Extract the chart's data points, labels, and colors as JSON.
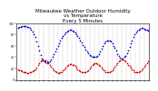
{
  "title": "Milwaukee Weather Outdoor Humidity\nvs Temperature\nEvery 5 Minutes",
  "title_fontsize": 4.0,
  "bg_color": "#ffffff",
  "grid_color": "#b0b0b0",
  "blue_color": "#0000cc",
  "red_color": "#cc0000",
  "ylim": [
    0,
    100
  ],
  "xlim": [
    0,
    300
  ],
  "blue_x": [
    3,
    6,
    9,
    12,
    15,
    18,
    21,
    24,
    27,
    30,
    33,
    36,
    39,
    42,
    45,
    48,
    51,
    54,
    57,
    60,
    63,
    66,
    69,
    72,
    75,
    78,
    81,
    84,
    87,
    90,
    93,
    96,
    99,
    102,
    105,
    108,
    111,
    114,
    117,
    120,
    123,
    126,
    129,
    132,
    135,
    138,
    141,
    144,
    147,
    150,
    153,
    156,
    159,
    162,
    165,
    168,
    171,
    174,
    177,
    180,
    183,
    186,
    189,
    192,
    195,
    198,
    201,
    204,
    207,
    210,
    213,
    216,
    219,
    222,
    225,
    228,
    231,
    234,
    237,
    240,
    243,
    246,
    249,
    252,
    255,
    258,
    261,
    264,
    267,
    270,
    273,
    276,
    279,
    282,
    285,
    288,
    291,
    294,
    297
  ],
  "blue_y": [
    92,
    93,
    94,
    95,
    95,
    95,
    95,
    94,
    93,
    91,
    88,
    85,
    80,
    75,
    68,
    60,
    52,
    44,
    38,
    34,
    32,
    31,
    30,
    31,
    33,
    36,
    40,
    45,
    50,
    55,
    60,
    65,
    70,
    74,
    78,
    81,
    84,
    86,
    87,
    88,
    88,
    87,
    86,
    84,
    81,
    78,
    74,
    70,
    66,
    62,
    58,
    54,
    50,
    47,
    44,
    42,
    40,
    40,
    40,
    41,
    43,
    46,
    50,
    55,
    60,
    65,
    68,
    70,
    70,
    69,
    67,
    64,
    60,
    56,
    51,
    46,
    42,
    39,
    38,
    38,
    40,
    43,
    47,
    52,
    58,
    64,
    70,
    75,
    80,
    84,
    87,
    89,
    90,
    91,
    91,
    90,
    89,
    88,
    87
  ],
  "red_x": [
    3,
    6,
    9,
    12,
    15,
    18,
    21,
    24,
    27,
    30,
    33,
    36,
    39,
    42,
    45,
    48,
    51,
    54,
    57,
    60,
    63,
    66,
    69,
    72,
    75,
    78,
    81,
    84,
    87,
    90,
    93,
    96,
    99,
    102,
    105,
    108,
    111,
    114,
    117,
    120,
    123,
    126,
    129,
    132,
    135,
    138,
    141,
    144,
    147,
    150,
    153,
    156,
    159,
    162,
    165,
    168,
    171,
    174,
    177,
    180,
    183,
    186,
    189,
    192,
    195,
    198,
    201,
    204,
    207,
    210,
    213,
    216,
    219,
    222,
    225,
    228,
    231,
    234,
    237,
    240,
    243,
    246,
    249,
    252,
    255,
    258,
    261,
    264,
    267,
    270,
    273,
    276,
    279,
    282,
    285,
    288,
    291,
    294,
    297
  ],
  "red_y": [
    18,
    17,
    16,
    15,
    14,
    13,
    13,
    12,
    12,
    13,
    14,
    15,
    17,
    19,
    22,
    26,
    30,
    33,
    35,
    36,
    35,
    34,
    32,
    29,
    26,
    23,
    20,
    17,
    15,
    13,
    12,
    12,
    13,
    14,
    16,
    19,
    22,
    25,
    27,
    28,
    28,
    27,
    26,
    24,
    22,
    19,
    17,
    15,
    14,
    13,
    13,
    14,
    15,
    17,
    20,
    23,
    26,
    28,
    29,
    29,
    28,
    26,
    24,
    21,
    18,
    16,
    14,
    13,
    13,
    14,
    15,
    17,
    20,
    23,
    27,
    30,
    33,
    35,
    36,
    36,
    35,
    33,
    30,
    27,
    24,
    21,
    18,
    16,
    14,
    13,
    13,
    14,
    15,
    17,
    20,
    23,
    27,
    30,
    33
  ],
  "xtick_count": 30,
  "marker_size": 1.5,
  "dot_size": 0.8
}
